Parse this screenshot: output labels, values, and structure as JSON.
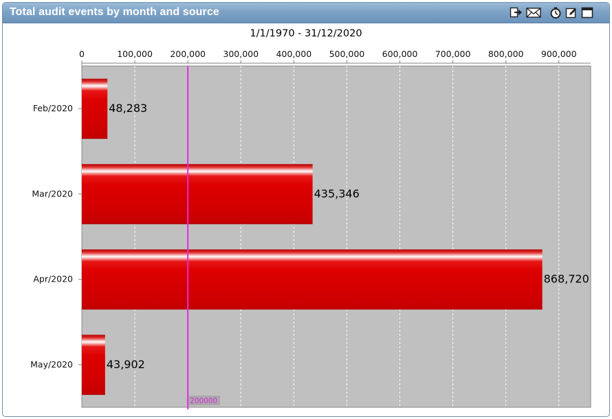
{
  "window": {
    "title": "Total audit events by month and source",
    "toolbar_icons": [
      "export-icon",
      "email-icon",
      "timer-icon",
      "edit-icon",
      "maximize-icon"
    ]
  },
  "chart_data": {
    "type": "bar",
    "orientation": "horizontal",
    "subtitle": "1/1/1970 - 31/12/2020",
    "categories": [
      "Feb/2020",
      "Mar/2020",
      "Apr/2020",
      "May/2020"
    ],
    "values": [
      48283,
      435346,
      868720,
      43902
    ],
    "value_labels": [
      "48,283",
      "435,346",
      "868,720",
      "43,902"
    ],
    "xlim": [
      0,
      960000
    ],
    "x_ticks": [
      0,
      100000,
      200000,
      300000,
      400000,
      500000,
      600000,
      700000,
      800000,
      900000
    ],
    "x_tick_labels": [
      "0",
      "100,000",
      "200,000",
      "300,000",
      "400,000",
      "500,000",
      "600,000",
      "700,000",
      "800,000",
      "900,000"
    ],
    "x_axis_position": "top",
    "grid": "vertical dashed",
    "reference_line": {
      "value": 200000,
      "label": "200000",
      "color": "#e02ce0"
    },
    "bar_color": "#dd0000",
    "plot_background": "#c0c0c0"
  }
}
